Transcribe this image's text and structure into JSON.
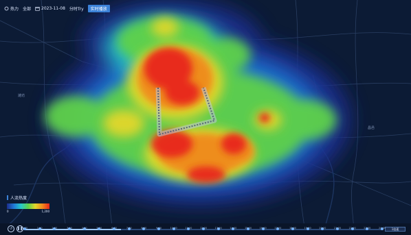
{
  "toolbar": {
    "item1_label": "热力",
    "item2_label": "全部",
    "item3_label": "2023-11-08",
    "item4_label": "分时Try",
    "button_label": "实时播放"
  },
  "map": {
    "label_left": "潍坊",
    "label_right": "昌邑",
    "heat_colors": [
      "#1d2d8c",
      "#1f7ad8",
      "#27c9c9",
      "#5fd14a",
      "#e3d72a",
      "#f08a1e",
      "#e8261a"
    ]
  },
  "legend": {
    "title": "人流热度",
    "min_label": "0",
    "max_label": "1,200"
  },
  "timeline": {
    "progress_fraction": 0.27,
    "ticks": [
      "0:00",
      "1:00",
      "2:00",
      "3:00",
      "4:00",
      "5:00",
      "6:00",
      "7:00",
      "8:00",
      "9:00",
      "10:00",
      "11:00",
      "12:00",
      "13:00",
      "14:00",
      "15:00",
      "16:00",
      "17:00",
      "18:00",
      "19:00",
      "20:00",
      "21:00",
      "22:00",
      "23:00",
      "24:00"
    ],
    "end_label": "1倍速",
    "icons": [
      "rewind-icon",
      "pause-icon"
    ]
  }
}
